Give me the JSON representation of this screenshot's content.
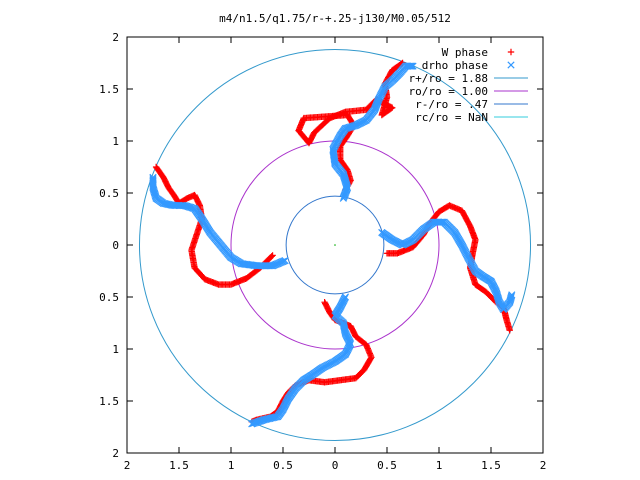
{
  "chart_data": {
    "type": "scatter",
    "title": "m4/n1.5/q1.75/r-+.25-j130/M0.05/512",
    "xlim": [
      -2,
      2
    ],
    "ylim": [
      -2,
      2
    ],
    "x_ticks": [
      -2,
      -1.5,
      -1,
      -0.5,
      0,
      0.5,
      1,
      1.5,
      2
    ],
    "y_ticks": [
      2,
      1.5,
      1,
      0.5,
      0,
      -0.5,
      -1,
      -1.5,
      -2
    ],
    "x_tick_labels": [
      "2",
      "1.5",
      "1",
      "0.5",
      "0",
      "0.5",
      "1",
      "1.5",
      "2"
    ],
    "y_tick_labels": [
      "2",
      "1.5",
      "1",
      "0.5",
      "0",
      "0.5",
      "1",
      "1.5",
      "2"
    ],
    "grid": false,
    "legend_position": "top-right",
    "series": [
      {
        "name": "W phase",
        "kind": "points",
        "marker": "plus",
        "color": "#ff0000",
        "arms": [
          [
            [
              0.1,
              0.53
            ],
            [
              0.15,
              0.62
            ],
            [
              0.12,
              0.72
            ],
            [
              0.05,
              0.82
            ],
            [
              0.05,
              0.95
            ],
            [
              0.12,
              1.05
            ],
            [
              0.18,
              1.15
            ],
            [
              0.12,
              1.25
            ],
            [
              -0.3,
              1.22
            ],
            [
              -0.35,
              1.1
            ],
            [
              -0.25,
              0.98
            ],
            [
              -0.2,
              1.08
            ],
            [
              -0.05,
              1.22
            ],
            [
              0.1,
              1.28
            ],
            [
              0.3,
              1.3
            ],
            [
              0.4,
              1.4
            ],
            [
              0.55,
              1.32
            ],
            [
              0.45,
              1.25
            ],
            [
              0.5,
              1.42
            ],
            [
              0.48,
              1.55
            ],
            [
              0.55,
              1.68
            ],
            [
              0.65,
              1.75
            ]
          ],
          [
            [
              0.5,
              -0.08
            ],
            [
              0.6,
              -0.08
            ],
            [
              0.75,
              -0.02
            ],
            [
              0.85,
              0.1
            ],
            [
              0.92,
              0.22
            ],
            [
              1.0,
              0.32
            ],
            [
              1.1,
              0.38
            ],
            [
              1.22,
              0.33
            ],
            [
              1.3,
              0.18
            ],
            [
              1.35,
              0.05
            ],
            [
              1.32,
              -0.1
            ],
            [
              1.3,
              -0.22
            ],
            [
              1.35,
              -0.38
            ],
            [
              1.45,
              -0.45
            ],
            [
              1.55,
              -0.55
            ],
            [
              1.62,
              -0.6
            ],
            [
              1.65,
              -0.72
            ],
            [
              1.68,
              -0.82
            ]
          ],
          [
            [
              -0.1,
              -0.55
            ],
            [
              -0.05,
              -0.65
            ],
            [
              0.0,
              -0.72
            ],
            [
              0.15,
              -0.78
            ],
            [
              0.2,
              -0.88
            ],
            [
              0.3,
              -0.96
            ],
            [
              0.35,
              -1.08
            ],
            [
              0.28,
              -1.2
            ],
            [
              0.2,
              -1.28
            ],
            [
              0.05,
              -1.3
            ],
            [
              -0.1,
              -1.32
            ],
            [
              -0.25,
              -1.3
            ],
            [
              -0.38,
              -1.35
            ],
            [
              -0.45,
              -1.42
            ],
            [
              -0.5,
              -1.5
            ],
            [
              -0.55,
              -1.6
            ],
            [
              -0.62,
              -1.65
            ],
            [
              -0.75,
              -1.68
            ],
            [
              -0.8,
              -1.7
            ]
          ],
          [
            [
              -0.6,
              -0.1
            ],
            [
              -0.72,
              -0.22
            ],
            [
              -0.85,
              -0.32
            ],
            [
              -1.0,
              -0.38
            ],
            [
              -1.12,
              -0.38
            ],
            [
              -1.25,
              -0.33
            ],
            [
              -1.35,
              -0.22
            ],
            [
              -1.38,
              -0.05
            ],
            [
              -1.33,
              0.1
            ],
            [
              -1.28,
              0.25
            ],
            [
              -1.3,
              0.38
            ],
            [
              -1.35,
              0.48
            ],
            [
              -1.42,
              0.45
            ],
            [
              -1.5,
              0.4
            ],
            [
              -1.55,
              0.48
            ],
            [
              -1.6,
              0.55
            ],
            [
              -1.65,
              0.65
            ],
            [
              -1.72,
              0.75
            ]
          ]
        ]
      },
      {
        "name": "drho phase",
        "kind": "points",
        "marker": "cross",
        "color": "#3399ff",
        "arms": [
          [
            [
              0.08,
              0.45
            ],
            [
              0.12,
              0.55
            ],
            [
              0.08,
              0.68
            ],
            [
              0.0,
              0.78
            ],
            [
              -0.02,
              0.92
            ],
            [
              0.05,
              1.05
            ],
            [
              0.1,
              1.12
            ],
            [
              0.2,
              1.15
            ],
            [
              0.3,
              1.2
            ],
            [
              0.38,
              1.3
            ],
            [
              0.42,
              1.4
            ],
            [
              0.48,
              1.52
            ],
            [
              0.55,
              1.58
            ],
            [
              0.62,
              1.65
            ],
            [
              0.68,
              1.72
            ],
            [
              0.75,
              1.72
            ]
          ],
          [
            [
              0.45,
              0.12
            ],
            [
              0.55,
              0.05
            ],
            [
              0.65,
              0.0
            ],
            [
              0.75,
              0.05
            ],
            [
              0.85,
              0.15
            ],
            [
              0.95,
              0.22
            ],
            [
              1.05,
              0.22
            ],
            [
              1.15,
              0.12
            ],
            [
              1.22,
              0.0
            ],
            [
              1.28,
              -0.12
            ],
            [
              1.35,
              -0.25
            ],
            [
              1.42,
              -0.3
            ],
            [
              1.5,
              -0.35
            ],
            [
              1.55,
              -0.45
            ],
            [
              1.58,
              -0.55
            ],
            [
              1.62,
              -0.62
            ],
            [
              1.68,
              -0.55
            ],
            [
              1.7,
              -0.48
            ]
          ],
          [
            [
              0.1,
              -0.5
            ],
            [
              0.05,
              -0.6
            ],
            [
              0.0,
              -0.68
            ],
            [
              0.08,
              -0.75
            ],
            [
              0.1,
              -0.85
            ],
            [
              0.15,
              -0.95
            ],
            [
              0.1,
              -1.05
            ],
            [
              0.0,
              -1.12
            ],
            [
              -0.12,
              -1.18
            ],
            [
              -0.22,
              -1.25
            ],
            [
              -0.3,
              -1.3
            ],
            [
              -0.38,
              -1.38
            ],
            [
              -0.45,
              -1.48
            ],
            [
              -0.5,
              -1.58
            ],
            [
              -0.55,
              -1.65
            ],
            [
              -0.68,
              -1.68
            ],
            [
              -0.8,
              -1.72
            ]
          ],
          [
            [
              -0.48,
              -0.15
            ],
            [
              -0.6,
              -0.2
            ],
            [
              -0.75,
              -0.2
            ],
            [
              -0.9,
              -0.18
            ],
            [
              -1.0,
              -0.12
            ],
            [
              -1.1,
              0.0
            ],
            [
              -1.2,
              0.12
            ],
            [
              -1.28,
              0.25
            ],
            [
              -1.35,
              0.35
            ],
            [
              -1.45,
              0.38
            ],
            [
              -1.55,
              0.38
            ],
            [
              -1.65,
              0.4
            ],
            [
              -1.72,
              0.45
            ],
            [
              -1.75,
              0.55
            ],
            [
              -1.75,
              0.65
            ]
          ]
        ]
      },
      {
        "name": "r+/ro = 1.88",
        "kind": "circle",
        "radius": 1.88,
        "color": "#3399cc"
      },
      {
        "name": "ro/ro = 1.00",
        "kind": "circle",
        "radius": 1.0,
        "color": "#aa33cc"
      },
      {
        "name": "r-/ro = .47",
        "kind": "circle",
        "radius": 0.47,
        "color": "#3377cc"
      },
      {
        "name": "rc/ro = NaN",
        "kind": "circle",
        "radius": null,
        "color": "#33ccdd"
      }
    ]
  }
}
